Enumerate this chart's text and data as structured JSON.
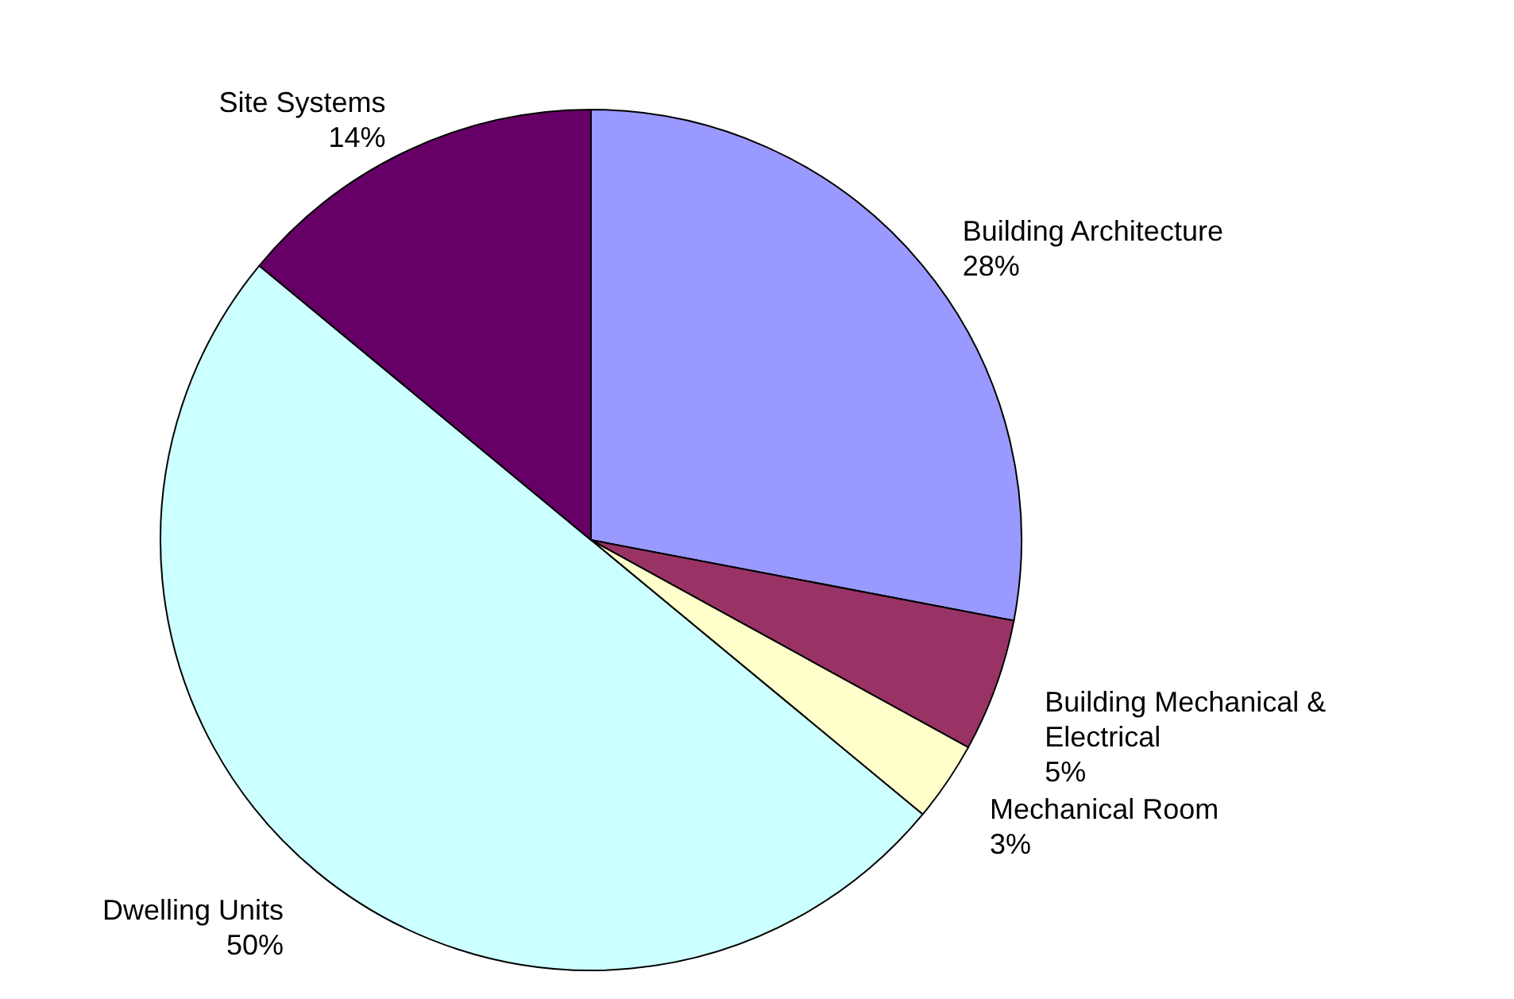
{
  "chart_data": {
    "type": "pie",
    "categories": [
      "Building Architecture",
      "Building Mechanical &\nElectrical",
      "Mechanical Room",
      "Dwelling Units",
      "Site Systems"
    ],
    "values": [
      28,
      5,
      3,
      50,
      14
    ],
    "value_labels": [
      "28%",
      "5%",
      "3%",
      "50%",
      "14%"
    ],
    "colors": [
      "#9999ff",
      "#993366",
      "#ffffcc",
      "#ccffff",
      "#660066"
    ]
  }
}
